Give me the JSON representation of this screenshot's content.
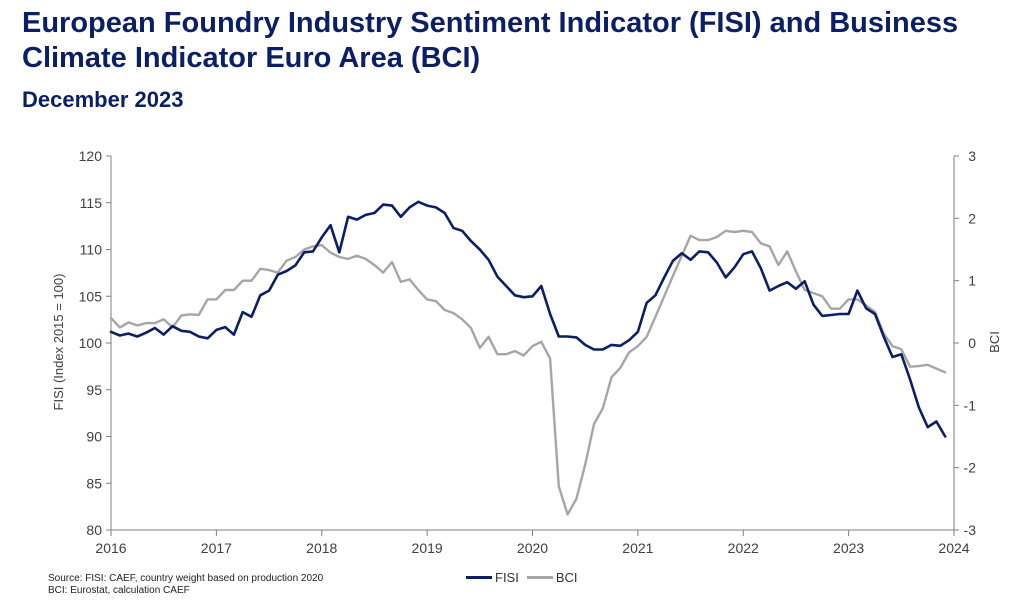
{
  "header": {
    "title": "European Foundry Industry Sentiment Indicator (FISI) and Business Climate Indicator Euro Area (BCI)",
    "subtitle": "December 2023"
  },
  "footnote": {
    "line1": "Source: FISI: CAEF, country weight based on production 2020",
    "line2": "BCI: Eurostat, calculation CAEF"
  },
  "colors": {
    "fisi": "#0b1f66",
    "bci": "#a6a6a6",
    "axis": "#808080"
  },
  "chart_data": {
    "type": "line",
    "title": "European Foundry Industry Sentiment Indicator (FISI) and Business Climate Indicator Euro Area (BCI)",
    "subtitle": "December 2023",
    "ylabel": "FISI (Index 2015 = 100)",
    "y2label": "BCI",
    "ylim": [
      80,
      120
    ],
    "y2lim": [
      -3,
      3
    ],
    "xlim": [
      2016,
      2024
    ],
    "x_ticks": [
      "2016",
      "2017",
      "2018",
      "2019",
      "2020",
      "2021",
      "2022",
      "2023",
      "2024"
    ],
    "y_ticks": [
      "80",
      "85",
      "90",
      "95",
      "100",
      "105",
      "110",
      "115",
      "120"
    ],
    "y2_ticks": [
      "-3",
      "-2",
      "-1",
      "0",
      "1",
      "2",
      "3"
    ],
    "legend_position": "bottom-center",
    "grid": false,
    "series": [
      {
        "name": "FISI",
        "axis": "left",
        "color": "#0b1f66",
        "values": [
          101.2,
          100.8,
          101.0,
          100.7,
          101.1,
          101.6,
          100.9,
          101.8,
          101.3,
          101.2,
          100.7,
          100.5,
          101.4,
          101.7,
          100.9,
          103.3,
          102.8,
          105.1,
          105.6,
          107.3,
          107.7,
          108.3,
          109.7,
          109.8,
          111.3,
          112.6,
          109.7,
          113.5,
          113.2,
          113.7,
          113.9,
          114.8,
          114.7,
          113.5,
          114.5,
          115.1,
          114.7,
          114.5,
          113.9,
          112.3,
          112.0,
          110.9,
          110.0,
          108.9,
          107.1,
          106.1,
          105.1,
          104.9,
          105.0,
          106.1,
          103.1,
          100.7,
          100.7,
          100.6,
          99.8,
          99.3,
          99.3,
          99.8,
          99.7,
          100.3,
          101.2,
          104.3,
          105.1,
          107.0,
          108.8,
          109.6,
          108.9,
          109.8,
          109.7,
          108.6,
          107.0,
          108.1,
          109.5,
          109.8,
          108.0,
          105.6,
          106.1,
          106.5,
          105.8,
          106.6,
          104.1,
          102.9,
          103.0,
          103.1,
          103.1,
          105.6,
          103.7,
          103.1,
          100.7,
          98.5,
          98.8,
          96.1,
          93.1,
          91.0,
          91.6,
          90.0
        ]
      },
      {
        "name": "BCI",
        "axis": "right",
        "color": "#a6a6a6",
        "values": [
          0.4,
          0.25,
          0.33,
          0.28,
          0.32,
          0.32,
          0.38,
          0.25,
          0.44,
          0.46,
          0.45,
          0.7,
          0.7,
          0.85,
          0.85,
          1.0,
          1.0,
          1.19,
          1.17,
          1.13,
          1.32,
          1.38,
          1.5,
          1.55,
          1.57,
          1.45,
          1.38,
          1.35,
          1.4,
          1.35,
          1.25,
          1.13,
          1.3,
          0.98,
          1.02,
          0.85,
          0.7,
          0.67,
          0.53,
          0.48,
          0.38,
          0.24,
          -0.08,
          0.1,
          -0.18,
          -0.18,
          -0.13,
          -0.2,
          -0.05,
          0.02,
          -0.25,
          -2.3,
          -2.75,
          -2.5,
          -1.95,
          -1.3,
          -1.05,
          -0.55,
          -0.4,
          -0.15,
          -0.05,
          0.1,
          0.42,
          0.75,
          1.08,
          1.4,
          1.72,
          1.65,
          1.65,
          1.7,
          1.8,
          1.78,
          1.8,
          1.78,
          1.6,
          1.55,
          1.25,
          1.47,
          1.15,
          0.85,
          0.8,
          0.75,
          0.55,
          0.55,
          0.7,
          0.7,
          0.6,
          0.5,
          0.15,
          -0.05,
          -0.1,
          -0.38,
          -0.37,
          -0.35,
          -0.41,
          -0.47
        ]
      }
    ]
  }
}
